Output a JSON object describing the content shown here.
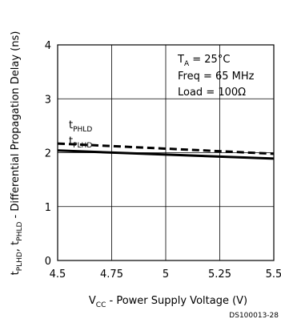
{
  "chart_data": {
    "type": "line",
    "xlabel": {
      "main": "V",
      "sub": "CC",
      "rest": " - Power Supply Voltage (V)"
    },
    "ylabel": {
      "p1": "t",
      "s1": "PLHD",
      "p2": ", t",
      "s2": "PHLD",
      "rest": " - Differential Propagation Delay (ns)"
    },
    "xlim": [
      4.5,
      5.5
    ],
    "ylim": [
      0,
      4
    ],
    "x_ticks": [
      "4.5",
      "4.75",
      "5",
      "5.25",
      "5.5"
    ],
    "y_ticks": [
      "0",
      "1",
      "2",
      "3",
      "4"
    ],
    "grid": true,
    "series": [
      {
        "name": "PHLD",
        "style": "dashed",
        "x": [
          4.5,
          5.5
        ],
        "y": [
          2.17,
          1.98
        ]
      },
      {
        "name": "PLHD",
        "style": "solid",
        "x": [
          4.5,
          5.5
        ],
        "y": [
          2.04,
          1.89
        ]
      }
    ],
    "series_labels": {
      "phld": {
        "prefix": "t",
        "sub": "PHLD"
      },
      "plhd": {
        "prefix": "t",
        "sub": "PLHD"
      }
    },
    "conditions": {
      "ta": {
        "main": "T",
        "sub": "A",
        "rest": " = 25°C"
      },
      "freq": "Freq = 65 MHz",
      "load": "Load = 100Ω"
    },
    "figure_id": "DS100013-28"
  }
}
